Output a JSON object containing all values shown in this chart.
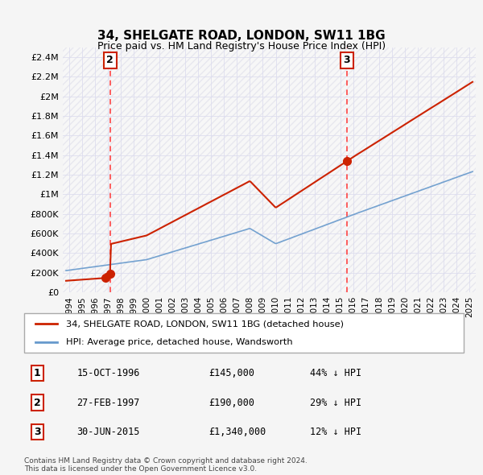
{
  "title": "34, SHELGATE ROAD, LONDON, SW11 1BG",
  "subtitle": "Price paid vs. HM Land Registry's House Price Index (HPI)",
  "background_color": "#f0f0f8",
  "plot_bg_color": "#ffffff",
  "transactions": [
    {
      "num": 1,
      "date_str": "15-OCT-1996",
      "date_x": 1996.79,
      "price": 145000,
      "label": "1"
    },
    {
      "num": 2,
      "date_str": "27-FEB-1997",
      "date_x": 1997.16,
      "price": 190000,
      "label": "2"
    },
    {
      "num": 3,
      "date_str": "30-JUN-2015",
      "date_x": 2015.5,
      "price": 1340000,
      "label": "3"
    }
  ],
  "legend_entries": [
    "34, SHELGATE ROAD, LONDON, SW11 1BG (detached house)",
    "HPI: Average price, detached house, Wandsworth"
  ],
  "table_rows": [
    [
      "1",
      "15-OCT-1996",
      "£145,000",
      "44% ↓ HPI"
    ],
    [
      "2",
      "27-FEB-1997",
      "£190,000",
      "29% ↓ HPI"
    ],
    [
      "3",
      "30-JUN-2015",
      "£1,340,000",
      "12% ↓ HPI"
    ]
  ],
  "footer": "Contains HM Land Registry data © Crown copyright and database right 2024.\nThis data is licensed under the Open Government Licence v3.0.",
  "xlim": [
    1993.5,
    2025.5
  ],
  "ylim": [
    0,
    2500000
  ],
  "yticks": [
    0,
    200000,
    400000,
    600000,
    800000,
    1000000,
    1200000,
    1400000,
    1600000,
    1800000,
    2000000,
    2200000,
    2400000
  ],
  "ytick_labels": [
    "£0",
    "£200K",
    "£400K",
    "£600K",
    "£800K",
    "£1M",
    "£1.2M",
    "£1.4M",
    "£1.6M",
    "£1.8M",
    "£2M",
    "£2.2M",
    "£2.4M"
  ],
  "xticks": [
    1994,
    1995,
    1996,
    1997,
    1998,
    1999,
    2000,
    2001,
    2002,
    2003,
    2004,
    2005,
    2006,
    2007,
    2008,
    2009,
    2010,
    2011,
    2012,
    2013,
    2014,
    2015,
    2016,
    2017,
    2018,
    2019,
    2020,
    2021,
    2022,
    2023,
    2024,
    2025
  ],
  "hpi_color": "#6699cc",
  "price_color": "#cc2200",
  "marker_color": "#cc2200",
  "dashed_line_color": "#ff4444",
  "red_box_color": "#cc2200"
}
